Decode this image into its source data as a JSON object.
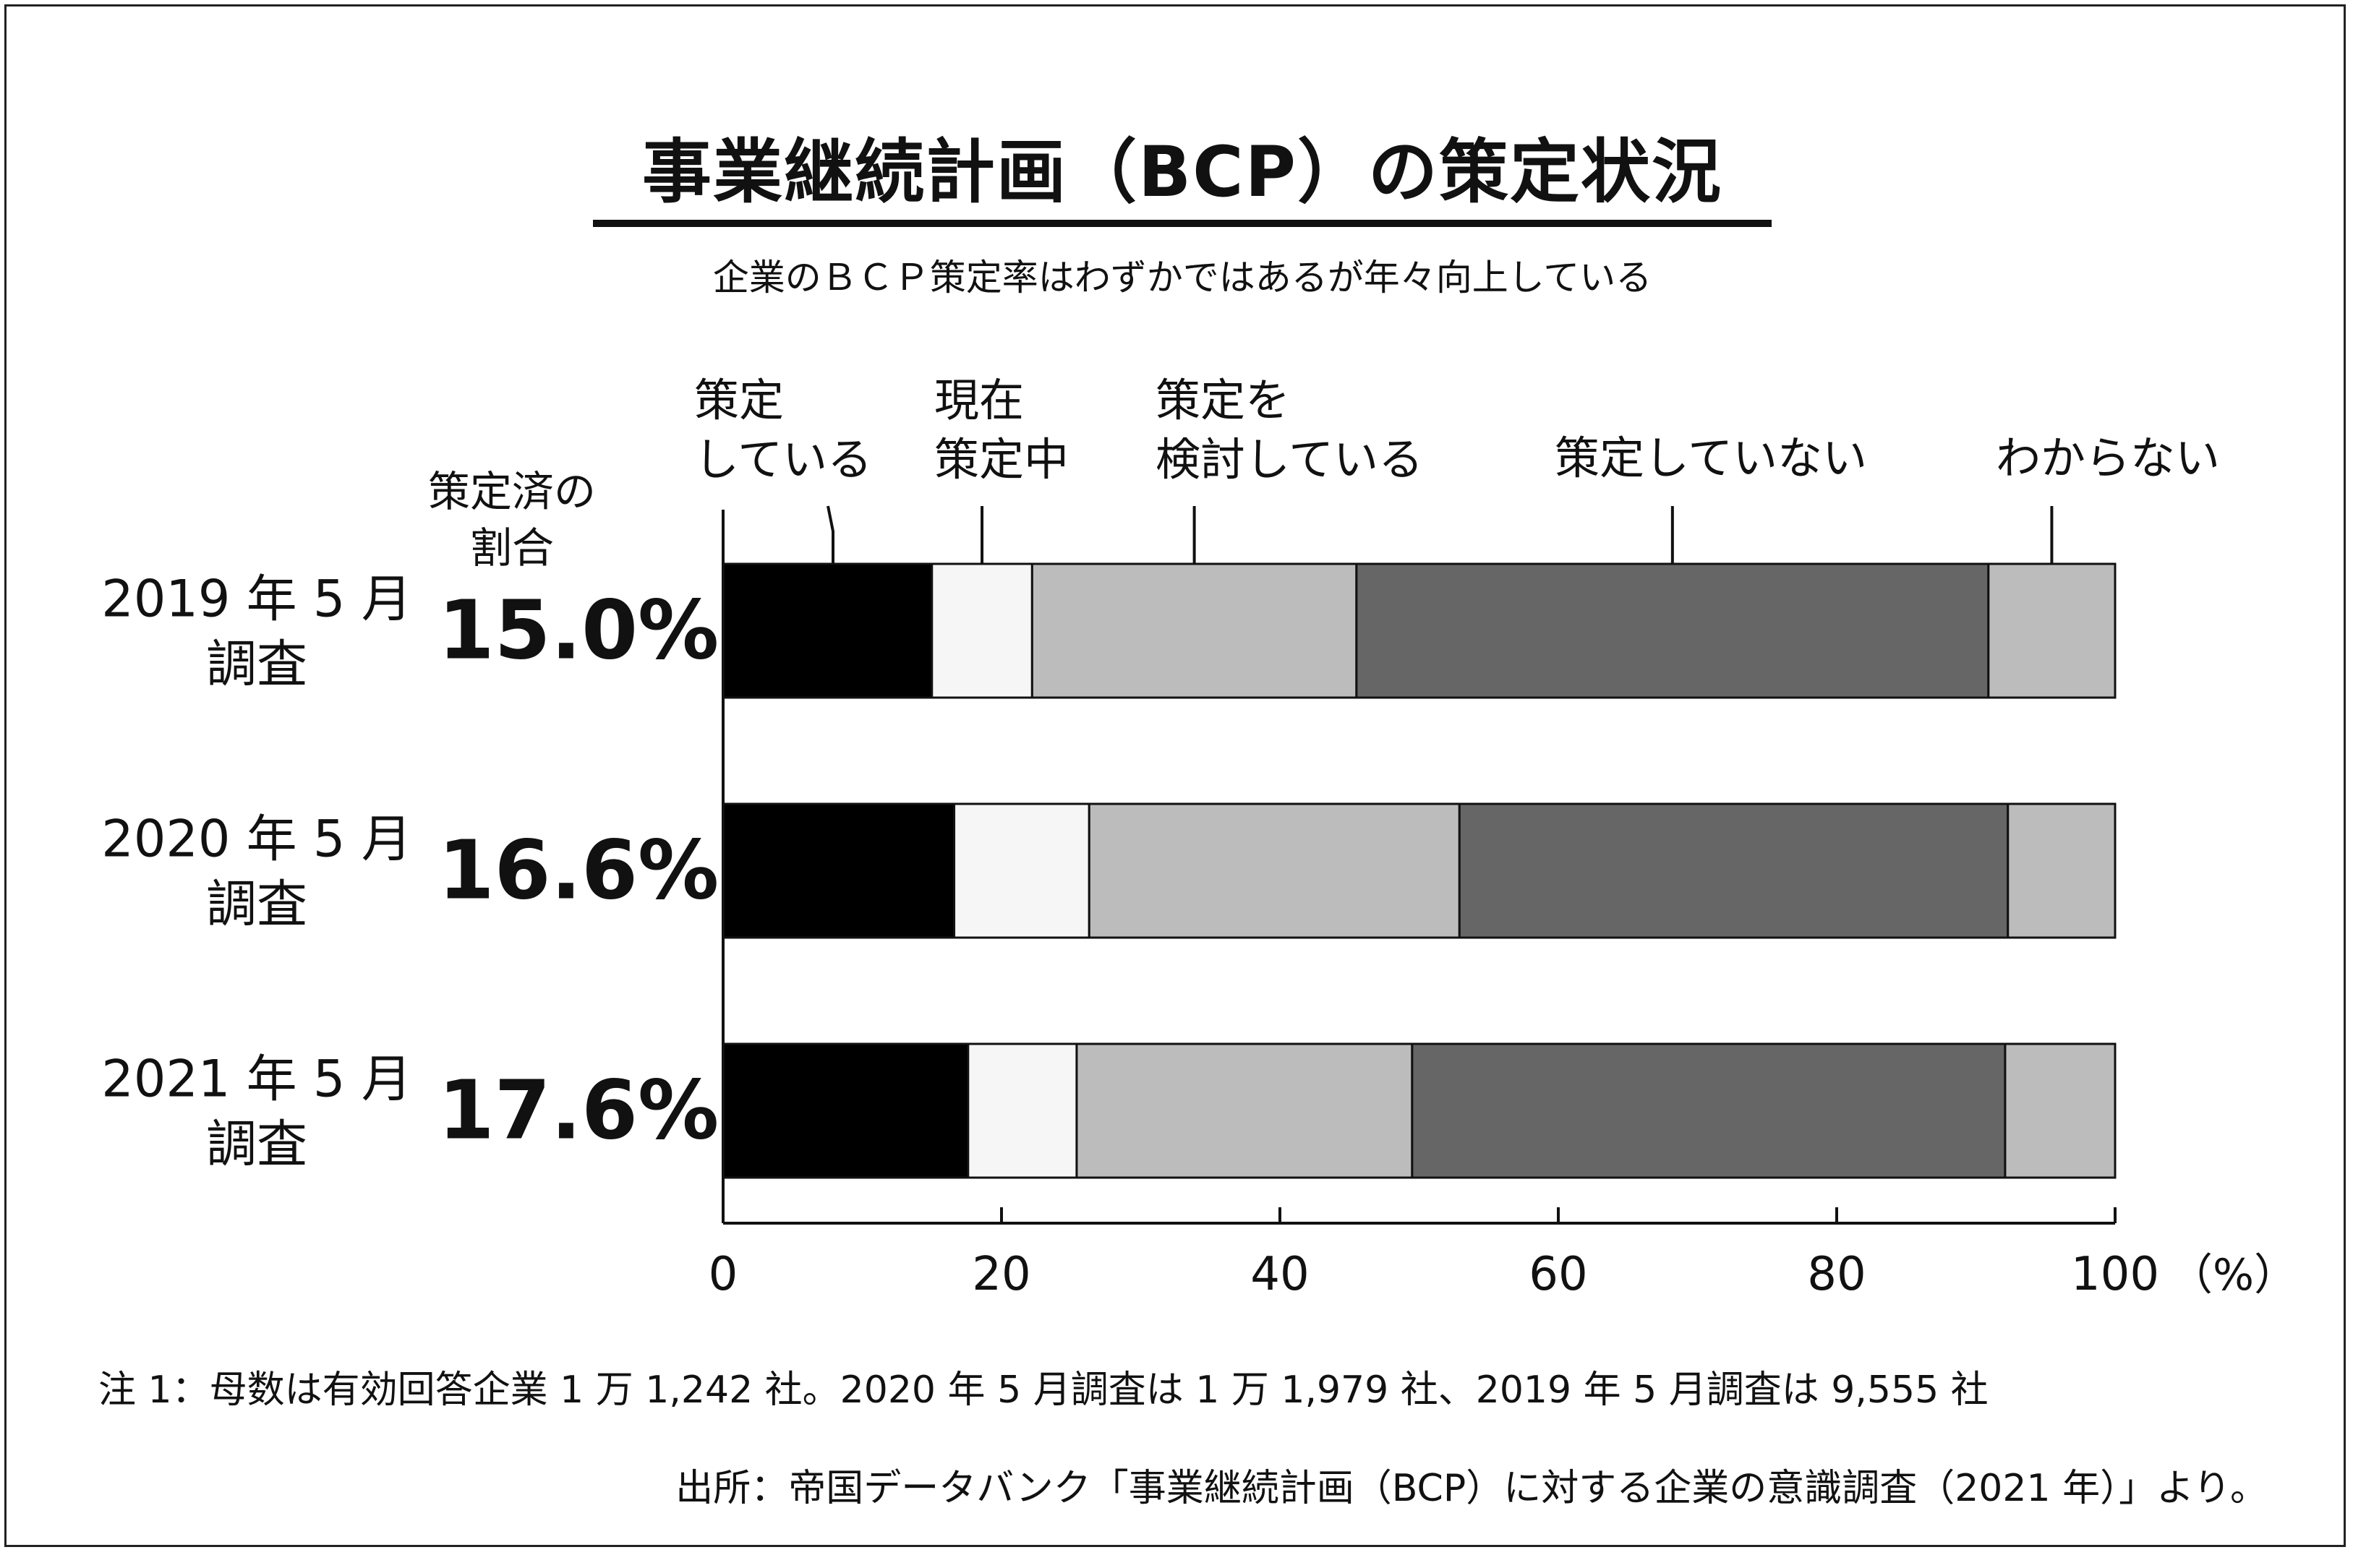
{
  "chart_data": {
    "type": "bar",
    "orientation": "horizontal",
    "stacked": true,
    "title": "事業継続計画（BCP）の策定状況",
    "subtitle": "企業のＢＣＰ策定率はわずかではあるが年々向上している",
    "categories": [
      [
        "2019 年 5 月",
        "調査"
      ],
      [
        "2020 年 5 月",
        "調査"
      ],
      [
        "2021 年 5 月",
        "調査"
      ]
    ],
    "rate_header": [
      "策定済の",
      "割合"
    ],
    "rate_labels": [
      "15.0%",
      "16.6%",
      "17.6%"
    ],
    "series": [
      {
        "name": [
          "策定",
          "している"
        ],
        "color": "#000000",
        "values": [
          15.0,
          16.6,
          17.6
        ]
      },
      {
        "name": [
          "現在",
          "策定中"
        ],
        "color": "#f6f6f6",
        "values": [
          7.2,
          9.7,
          7.8
        ]
      },
      {
        "name": [
          "策定を",
          "検討している"
        ],
        "color": "#bcbcbc",
        "values": [
          23.3,
          26.6,
          24.1
        ]
      },
      {
        "name": [
          "策定していない"
        ],
        "color": "#666666",
        "values": [
          45.4,
          39.4,
          42.6
        ]
      },
      {
        "name": [
          "わからない"
        ],
        "color": "#bcbcbc",
        "values": [
          9.1,
          7.7,
          7.9
        ]
      }
    ],
    "xlim": [
      0,
      100
    ],
    "x_ticks": [
      "0",
      "20",
      "40",
      "60",
      "80",
      "100"
    ],
    "x_unit": "（%）",
    "grid": false
  },
  "notes": {
    "note1": "注 1：母数は有効回答企業 1 万 1,242 社。2020 年 5 月調査は 1 万 1,979 社、2019 年 5 月調査は 9,555 社",
    "source": "出所：帝国データバンク「事業継続計画（BCP）に対する企業の意識調査（2021 年）」より。"
  }
}
